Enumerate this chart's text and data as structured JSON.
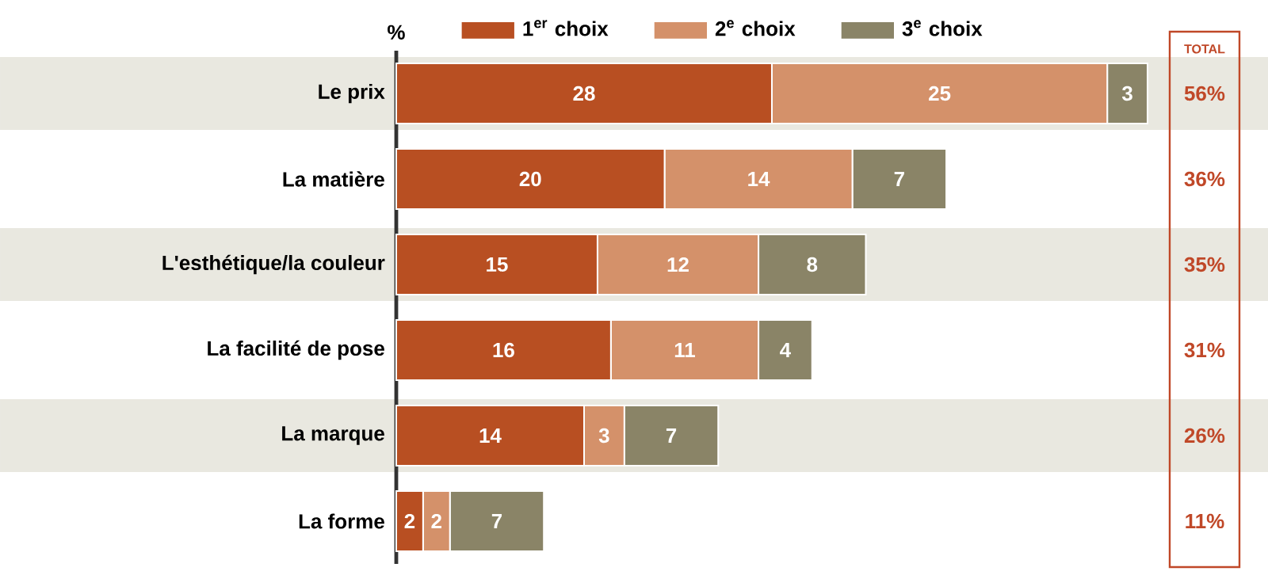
{
  "chart_data": {
    "type": "bar",
    "orientation": "horizontal",
    "stacked": true,
    "xlabel": "%",
    "categories": [
      "Le prix",
      "La matière",
      "L'esthétique/la couleur",
      "La facilité de pose",
      "La marque",
      "La forme"
    ],
    "series": [
      {
        "name": "1$^{er}$ choix",
        "color": "#b84f22",
        "values": [
          28,
          20,
          15,
          16,
          14,
          2
        ]
      },
      {
        "name": "2$^{e}$ choix",
        "color": "#d4916a",
        "values": [
          25,
          14,
          12,
          11,
          3,
          2
        ]
      },
      {
        "name": "3$^{e}$ choix",
        "color": "#8a8467",
        "values": [
          3,
          7,
          8,
          4,
          7,
          7
        ]
      }
    ],
    "data_labels": true,
    "legend": "top",
    "annotations": [
      "TOTAL",
      "56%",
      "36%",
      "35%",
      "31%",
      "26%",
      "11%"
    ]
  }
}
